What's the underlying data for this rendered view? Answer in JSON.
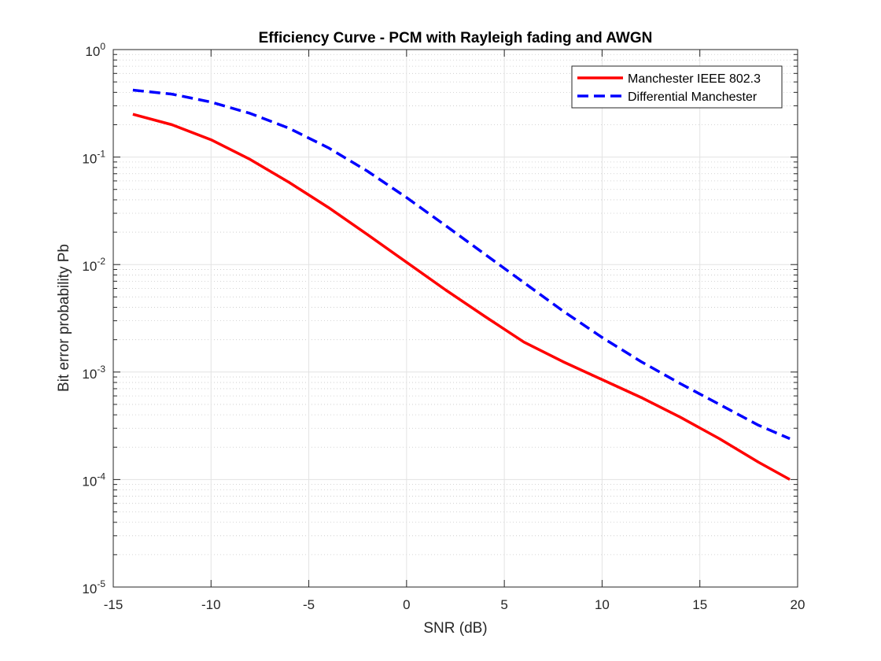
{
  "chart_data": {
    "type": "line",
    "title": "Efficiency Curve - PCM with Rayleigh fading and AWGN",
    "xlabel": "SNR (dB)",
    "ylabel": "Bit error probability Pb",
    "xlim": [
      -15,
      20
    ],
    "ylim": [
      1e-05,
      1
    ],
    "yscale": "log",
    "xticks": [
      -15,
      -10,
      -5,
      0,
      5,
      10,
      15,
      20
    ],
    "xtick_labels": [
      "-15",
      "-10",
      "-5",
      "0",
      "5",
      "10",
      "15",
      "20"
    ],
    "yticks": [
      1e-05,
      0.0001,
      0.001,
      0.01,
      0.1,
      1
    ],
    "ytick_labels": [
      {
        "base": "10",
        "exp": "-5"
      },
      {
        "base": "10",
        "exp": "-4"
      },
      {
        "base": "10",
        "exp": "-3"
      },
      {
        "base": "10",
        "exp": "-2"
      },
      {
        "base": "10",
        "exp": "-1"
      },
      {
        "base": "10",
        "exp": "0"
      }
    ],
    "grid": true,
    "minor_grid": true,
    "legend_position": "top-right",
    "series": [
      {
        "name": "Manchester IEEE 802.3",
        "color": "#ff0000",
        "style": "solid",
        "x": [
          -14,
          -12,
          -10,
          -8,
          -6,
          -4,
          -2,
          0,
          2,
          4,
          6,
          8,
          10,
          12,
          14,
          16,
          18,
          19.6
        ],
        "y": [
          0.25,
          0.2,
          0.145,
          0.095,
          0.058,
          0.034,
          0.019,
          0.0105,
          0.0058,
          0.0033,
          0.0019,
          0.00125,
          0.00085,
          0.00058,
          0.00038,
          0.00024,
          0.000145,
          0.0001
        ]
      },
      {
        "name": "Differential Manchester",
        "color": "#0000ff",
        "style": "dashed",
        "x": [
          -14,
          -12,
          -10,
          -8,
          -6,
          -4,
          -2,
          0,
          2,
          4,
          6,
          8,
          10,
          12,
          14,
          16,
          18,
          19.6
        ],
        "y": [
          0.42,
          0.385,
          0.325,
          0.255,
          0.185,
          0.122,
          0.074,
          0.042,
          0.023,
          0.0125,
          0.0068,
          0.0037,
          0.0021,
          0.00125,
          0.00078,
          0.0005,
          0.00032,
          0.00024
        ]
      }
    ]
  }
}
